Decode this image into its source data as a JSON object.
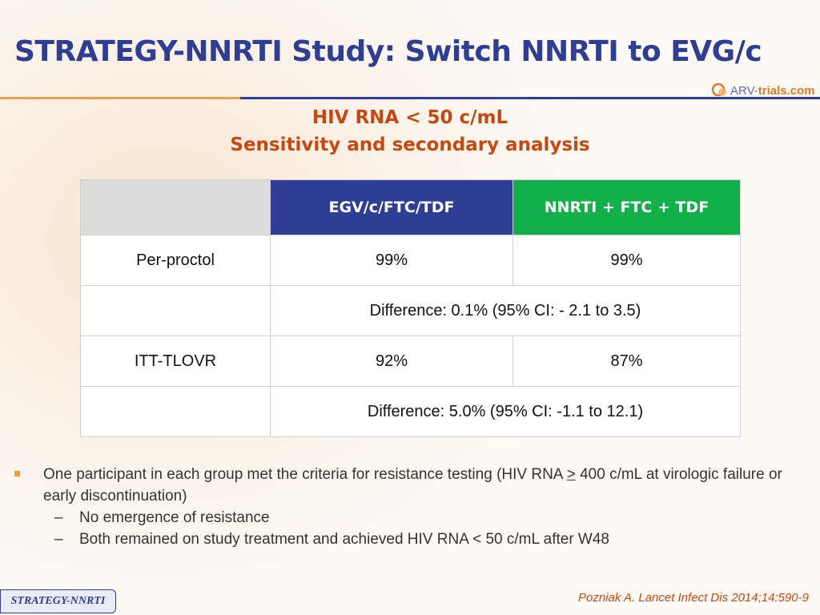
{
  "header": {
    "title": "STRATEGY-NNRTI Study: Switch NNRTI to EVG/c",
    "logo_prefix": "ARV-",
    "logo_suffix": "trials.com"
  },
  "subtitle": {
    "line1": "HIV RNA < 50 c/mL",
    "line2": "Sensitivity and secondary analysis"
  },
  "table": {
    "headers": [
      "",
      "EGV/c/FTC/TDF",
      "NNRTI + FTC + TDF"
    ],
    "rows": [
      {
        "label": "Per-proctol",
        "a": "99%",
        "b": "99%"
      },
      {
        "label": "",
        "diff": "Difference: 0.1% (95% CI: - 2.1 to 3.5)"
      },
      {
        "label": "ITT-TLOVR",
        "a": "92%",
        "b": "87%"
      },
      {
        "label": "",
        "diff": "Difference: 5.0% (95% CI: -1.1 to 12.1)"
      }
    ]
  },
  "bullets": {
    "main_pre": "One participant in each group met the criteria for resistance testing (HIV RNA ",
    "main_sym": ">",
    "main_post": " 400 c/mL at virologic failure or early discontinuation)",
    "dash": "–",
    "sub": [
      "No emergence of resistance",
      "Both remained on study treatment and achieved HIV RNA < 50 c/mL after W48"
    ]
  },
  "citation": "Pozniak A. Lancet Infect Dis 2014;14:590-9",
  "footer_tag": "STRATEGY-NNRTI",
  "colors": {
    "title_blue": "#2e3e95",
    "accent_orange": "#c8470f",
    "header_green": "#12b04a"
  }
}
